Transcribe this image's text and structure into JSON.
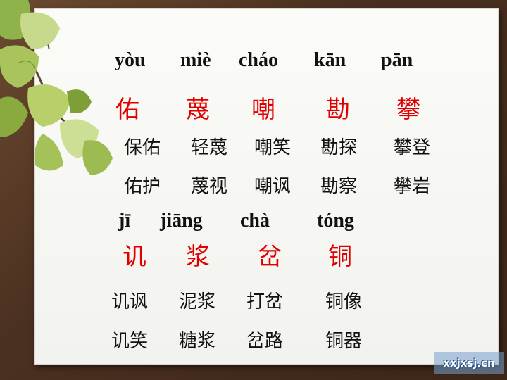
{
  "row1": {
    "pinyin": [
      "yòu",
      "miè",
      "cháo",
      "kān",
      "pān"
    ],
    "chars": [
      "佑",
      "蔑",
      "嘲",
      "勘",
      "攀"
    ],
    "words_a": [
      "保佑",
      "轻蔑",
      "嘲笑",
      "勘探",
      "攀登"
    ],
    "words_b": [
      "佑护",
      "蔑视",
      "嘲讽",
      "勘察",
      "攀岩"
    ]
  },
  "row2": {
    "pinyin": [
      "jī",
      "jiāng",
      "chà",
      "tóng"
    ],
    "chars": [
      "讥",
      "浆",
      "岔",
      "铜"
    ],
    "words_a": [
      "讥讽",
      "泥浆",
      "打岔",
      "铜像"
    ],
    "words_b": [
      "讥笑",
      "糖浆",
      "岔路",
      "铜器"
    ]
  },
  "watermark": "xxjxsj.cn",
  "colors": {
    "accent": "#e00000",
    "text": "#111111",
    "paper": "#f7f7f4"
  }
}
